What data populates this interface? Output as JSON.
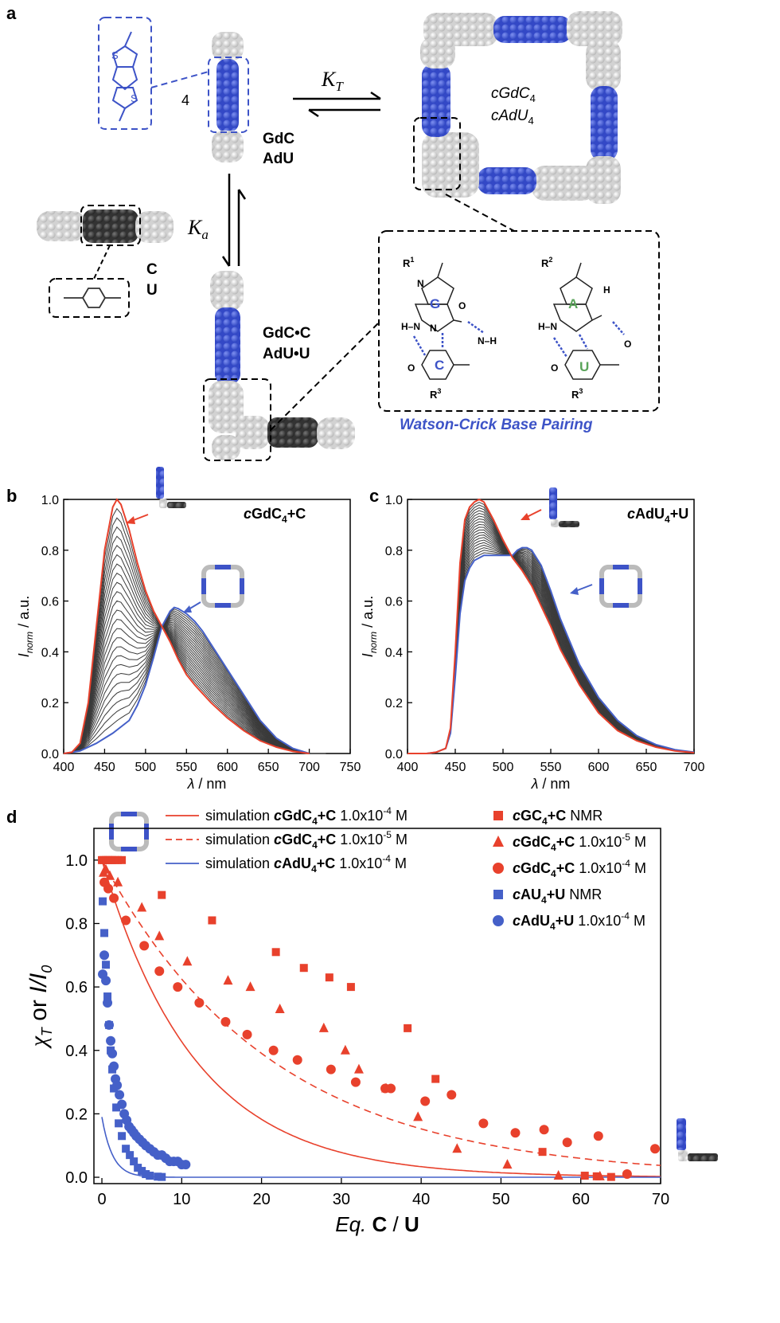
{
  "panels": {
    "a": "a",
    "b": "b",
    "c": "c",
    "d": "d"
  },
  "panel_a": {
    "n4": "4",
    "kt": "K",
    "kt_sub": "T",
    "ka": "K",
    "ka_sub": "a",
    "dimer_1": "GdC",
    "dimer_2": "AdU",
    "base_1": "C",
    "base_2": "U",
    "complex_1": "GdC•C",
    "complex_2": "AdU•U",
    "macro_1": "cGdC",
    "macro_1_sub": "4",
    "macro_2": "cAdU",
    "macro_2_sub": "4",
    "wc_label": "Watson-Crick Base Pairing",
    "letters": {
      "G": "G",
      "C": "C",
      "A": "A",
      "U": "U"
    },
    "atoms": {
      "R1": "R",
      "R1s": "1",
      "R2": "R",
      "R2s": "2",
      "R3": "R",
      "R3s": "3",
      "N": "N",
      "O": "O",
      "H": "H",
      "NH": "N–H",
      "HN": "H–N"
    },
    "colors": {
      "blue": "#3d53c7",
      "dark": "#2c2c2c",
      "grey": "#c8c8c8",
      "green": "#5aa45a"
    }
  },
  "chart_data": [
    {
      "panel": "b",
      "type": "line",
      "title": "cGdC4+C",
      "xlabel": "λ / nm",
      "ylabel": "Inorm / a.u.",
      "xlim": [
        400,
        750
      ],
      "ylim": [
        0,
        1.0
      ],
      "xticks": [
        400,
        450,
        500,
        550,
        600,
        650,
        700,
        750
      ],
      "yticks": [
        0.0,
        0.2,
        0.4,
        0.6,
        0.8,
        1.0
      ],
      "isosbestic": [
        520,
        0.5
      ],
      "series": [
        {
          "role": "start",
          "color": "#e8412c",
          "x": [
            400,
            410,
            420,
            430,
            440,
            450,
            460,
            465,
            470,
            480,
            490,
            500,
            510,
            520,
            530,
            540,
            550,
            560,
            580,
            600,
            620,
            640,
            660,
            680,
            700
          ],
          "y": [
            0,
            0.005,
            0.04,
            0.2,
            0.5,
            0.8,
            0.97,
            1.0,
            0.98,
            0.88,
            0.75,
            0.64,
            0.56,
            0.5,
            0.44,
            0.37,
            0.31,
            0.27,
            0.2,
            0.14,
            0.09,
            0.05,
            0.025,
            0.008,
            0
          ]
        },
        {
          "role": "end",
          "color": "#4560c8",
          "x": [
            400,
            420,
            440,
            460,
            480,
            490,
            500,
            510,
            520,
            530,
            535,
            540,
            550,
            560,
            570,
            580,
            600,
            620,
            640,
            660,
            680,
            700
          ],
          "y": [
            0,
            0.01,
            0.04,
            0.08,
            0.13,
            0.19,
            0.27,
            0.38,
            0.5,
            0.56,
            0.575,
            0.57,
            0.55,
            0.52,
            0.48,
            0.43,
            0.33,
            0.23,
            0.13,
            0.06,
            0.02,
            0
          ]
        }
      ],
      "intermediate_curves": 24,
      "curve_color": "#3a3a3a"
    },
    {
      "panel": "c",
      "type": "line",
      "title": "cAdU4+U",
      "xlabel": "λ / nm",
      "ylabel": "Inorm / a.u.",
      "xlim": [
        400,
        700
      ],
      "ylim": [
        0,
        1.0
      ],
      "xticks": [
        400,
        450,
        500,
        550,
        600,
        650,
        700
      ],
      "yticks": [
        0.0,
        0.2,
        0.4,
        0.6,
        0.8,
        1.0
      ],
      "series": [
        {
          "role": "start",
          "color": "#e8412c",
          "x": [
            400,
            420,
            430,
            440,
            445,
            450,
            455,
            460,
            465,
            470,
            475,
            480,
            490,
            500,
            510,
            520,
            530,
            540,
            550,
            560,
            580,
            600,
            620,
            640,
            660,
            680,
            700
          ],
          "y": [
            0,
            0,
            0.005,
            0.02,
            0.1,
            0.4,
            0.75,
            0.92,
            0.97,
            0.99,
            1.0,
            0.99,
            0.92,
            0.84,
            0.77,
            0.72,
            0.66,
            0.58,
            0.5,
            0.41,
            0.27,
            0.16,
            0.09,
            0.05,
            0.025,
            0.01,
            0.003
          ]
        },
        {
          "role": "end",
          "color": "#4560c8",
          "x": [
            400,
            420,
            430,
            440,
            445,
            450,
            455,
            460,
            465,
            470,
            480,
            490,
            500,
            510,
            515,
            520,
            525,
            530,
            540,
            550,
            560,
            580,
            600,
            620,
            640,
            660,
            680,
            700
          ],
          "y": [
            0,
            0,
            0.005,
            0.02,
            0.08,
            0.3,
            0.55,
            0.68,
            0.73,
            0.76,
            0.78,
            0.78,
            0.78,
            0.78,
            0.8,
            0.81,
            0.81,
            0.8,
            0.74,
            0.64,
            0.53,
            0.35,
            0.22,
            0.13,
            0.07,
            0.035,
            0.015,
            0.005
          ]
        }
      ],
      "intermediate_curves": 20,
      "curve_color": "#3a3a3a"
    },
    {
      "panel": "d",
      "type": "scatter",
      "xlabel_a": "Eq.",
      "xlabel_b": "C / U",
      "ylabel_a": "χ",
      "ylabel_a_sub": "T",
      "ylabel_b": "or",
      "ylabel_c": "I/I",
      "ylabel_c_sub": "0",
      "xlim": [
        -1,
        70
      ],
      "ylim": [
        -0.02,
        1.1
      ],
      "xticks": [
        0,
        10,
        20,
        30,
        40,
        50,
        60,
        70
      ],
      "yticks": [
        0.0,
        0.2,
        0.4,
        0.6,
        0.8,
        1.0
      ],
      "legend_left": [
        {
          "label": "simulation ",
          "bold": "cGdC",
          "sub": "4",
          "bold2": "+C",
          "conc": " 1.0x10",
          "exp": "-4",
          "unit": " M",
          "color": "#e8412c",
          "dash": false
        },
        {
          "label": "simulation ",
          "bold": "cGdC",
          "sub": "4",
          "bold2": "+C",
          "conc": " 1.0x10",
          "exp": "-5",
          "unit": " M",
          "color": "#e8412c",
          "dash": true
        },
        {
          "label": "simulation ",
          "bold": "cAdU",
          "sub": "4",
          "bold2": "+C",
          "conc": " 1.0x10",
          "exp": "-4",
          "unit": " M",
          "color": "#4560c8",
          "dash": false
        }
      ],
      "legend_right": [
        {
          "marker": "square",
          "color": "#e8412c",
          "bold": "cGC",
          "sub": "4",
          "bold2": "+C",
          "rest": " NMR",
          "exp": "",
          "unit": ""
        },
        {
          "marker": "triangle",
          "color": "#e8412c",
          "bold": "cGdC",
          "sub": "4",
          "bold2": "+C",
          "rest": " 1.0x10",
          "exp": "-5",
          "unit": " M"
        },
        {
          "marker": "circle",
          "color": "#e8412c",
          "bold": "cGdC",
          "sub": "4",
          "bold2": "+C",
          "rest": " 1.0x10",
          "exp": "-4",
          "unit": " M"
        },
        {
          "marker": "square",
          "color": "#4560c8",
          "bold": "cAU",
          "sub": "4",
          "bold2": "+U",
          "rest": " NMR",
          "exp": "",
          "unit": ""
        },
        {
          "marker": "circle",
          "color": "#4560c8",
          "bold": "cAdU",
          "sub": "4",
          "bold2": "+U",
          "rest": "  1.0x10",
          "exp": "-4",
          "unit": " M"
        }
      ],
      "series": [
        {
          "name": "cGC4+C NMR",
          "marker": "square",
          "color": "#e8412c",
          "x": [
            0,
            0.2,
            0.5,
            0.8,
            1,
            1.3,
            1.6,
            2,
            2.5,
            7.5,
            13.8,
            21.8,
            25.3,
            28.5,
            31.2,
            38.3,
            41.8,
            55.2,
            60.5,
            62,
            63.8
          ],
          "y": [
            1,
            1,
            1,
            1,
            1,
            1,
            1,
            1,
            1,
            0.89,
            0.81,
            0.71,
            0.66,
            0.63,
            0.6,
            0.47,
            0.31,
            0.08,
            0.005,
            0.003,
            0.001
          ]
        },
        {
          "name": "cGdC4+C 1.0x10-5 M",
          "marker": "triangle",
          "color": "#e8412c",
          "x": [
            0.2,
            0.5,
            1,
            2,
            5,
            7.2,
            10.7,
            15.8,
            18.6,
            22.3,
            27.8,
            30.5,
            32.2,
            35.6,
            39.6,
            44.5,
            50.8,
            57.2,
            62.4
          ],
          "y": [
            0.96,
            0.97,
            0.95,
            0.93,
            0.85,
            0.76,
            0.68,
            0.62,
            0.6,
            0.53,
            0.47,
            0.4,
            0.34,
            0.28,
            0.19,
            0.09,
            0.04,
            0.005,
            0.003
          ]
        },
        {
          "name": "cGdC4+C 1.0x10-4 M",
          "marker": "circle",
          "color": "#e8412c",
          "x": [
            0.3,
            0.8,
            1.5,
            3,
            5.3,
            7.2,
            9.5,
            12.2,
            15.5,
            18.2,
            21.5,
            24.5,
            28.7,
            31.8,
            35.5,
            36.2,
            40.5,
            43.8,
            47.8,
            51.8,
            55.4,
            58.3,
            62.2,
            65.8,
            69.3
          ],
          "y": [
            0.93,
            0.91,
            0.88,
            0.81,
            0.73,
            0.65,
            0.6,
            0.55,
            0.49,
            0.45,
            0.4,
            0.37,
            0.34,
            0.3,
            0.28,
            0.28,
            0.24,
            0.26,
            0.17,
            0.14,
            0.15,
            0.11,
            0.13,
            0.01,
            0.09
          ]
        },
        {
          "name": "cAU4+U NMR",
          "marker": "square",
          "color": "#4560c8",
          "x": [
            0.1,
            0.3,
            0.5,
            0.7,
            0.9,
            1.1,
            1.3,
            1.5,
            1.8,
            2.1,
            2.5,
            3,
            3.5,
            4,
            4.5,
            5,
            5.5,
            6,
            7,
            7.5
          ],
          "y": [
            0.87,
            0.77,
            0.67,
            0.57,
            0.48,
            0.4,
            0.34,
            0.28,
            0.22,
            0.17,
            0.13,
            0.09,
            0.07,
            0.05,
            0.03,
            0.02,
            0.01,
            0.005,
            0.002,
            0.001
          ]
        },
        {
          "name": "cAdU4+U 1.0x10-4 M",
          "marker": "circle",
          "color": "#4560c8",
          "x": [
            0.1,
            0.3,
            0.5,
            0.7,
            0.9,
            1.1,
            1.3,
            1.5,
            1.7,
            1.9,
            2.2,
            2.5,
            2.8,
            3.1,
            3.4,
            3.7,
            4,
            4.3,
            4.7,
            5.1,
            5.5,
            6,
            6.5,
            7,
            7.5,
            8,
            8.5,
            9,
            9.5,
            10,
            10.5
          ],
          "y": [
            0.64,
            0.7,
            0.62,
            0.55,
            0.48,
            0.43,
            0.39,
            0.35,
            0.31,
            0.29,
            0.26,
            0.23,
            0.2,
            0.18,
            0.16,
            0.15,
            0.14,
            0.13,
            0.12,
            0.11,
            0.1,
            0.09,
            0.08,
            0.07,
            0.07,
            0.06,
            0.05,
            0.05,
            0.05,
            0.04,
            0.04
          ]
        }
      ],
      "simulations": [
        {
          "color": "#e8412c",
          "dash": false,
          "y0": 1.0,
          "k": 0.085
        },
        {
          "color": "#e8412c",
          "dash": true,
          "y0": 1.0,
          "k": 0.047
        },
        {
          "color": "#4560c8",
          "dash": false,
          "y0": 0.19,
          "k": 0.75
        }
      ]
    }
  ]
}
